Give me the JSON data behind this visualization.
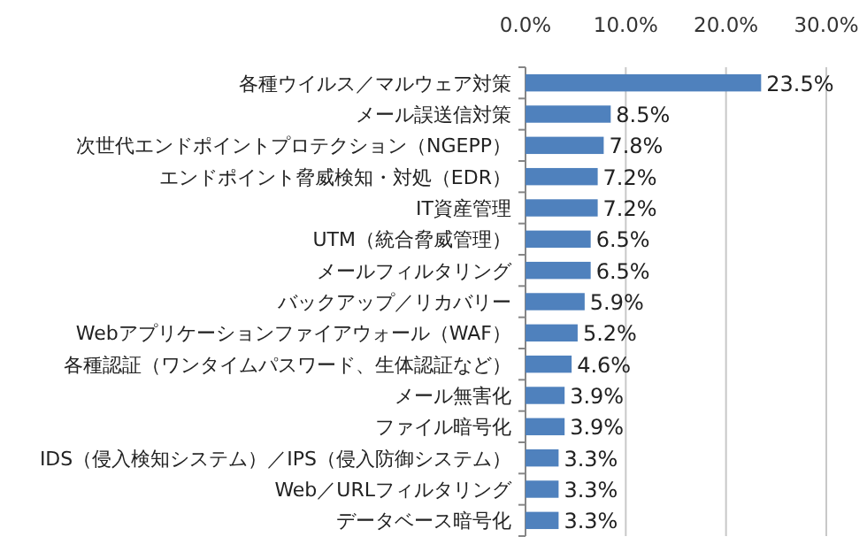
{
  "chart_data": {
    "type": "bar",
    "orientation": "horizontal",
    "categories": [
      "各種ウイルス／マルウェア対策",
      "メール誤送信対策",
      "次世代エンドポイントプロテクション（NGEPP）",
      "エンドポイント脅威検知・対処（EDR）",
      "IT資産管理",
      "UTM（統合脅威管理）",
      "メールフィルタリング",
      "バックアップ／リカバリー",
      "Webアプリケーションファイアウォール（WAF）",
      "各種認証（ワンタイムパスワード、生体認証など）",
      "メール無害化",
      "ファイル暗号化",
      "IDS（侵入検知システム）／IPS（侵入防御システム）",
      "Web／URLフィルタリング",
      "データベース暗号化"
    ],
    "values": [
      23.5,
      8.5,
      7.8,
      7.2,
      7.2,
      6.5,
      6.5,
      5.9,
      5.2,
      4.6,
      3.9,
      3.9,
      3.3,
      3.3,
      3.3
    ],
    "value_labels": [
      "23.5%",
      "8.5%",
      "7.8%",
      "7.2%",
      "7.2%",
      "6.5%",
      "6.5%",
      "5.9%",
      "5.2%",
      "4.6%",
      "3.9%",
      "3.9%",
      "3.3%",
      "3.3%",
      "3.3%"
    ],
    "color": "#4f81bd",
    "xlim": [
      0,
      30
    ],
    "xticks": [
      {
        "value": 0,
        "label": "0.0%"
      },
      {
        "value": 10,
        "label": "10.0%"
      },
      {
        "value": 20,
        "label": "20.0%"
      },
      {
        "value": 30,
        "label": "30.0%"
      }
    ],
    "grid": "x"
  }
}
